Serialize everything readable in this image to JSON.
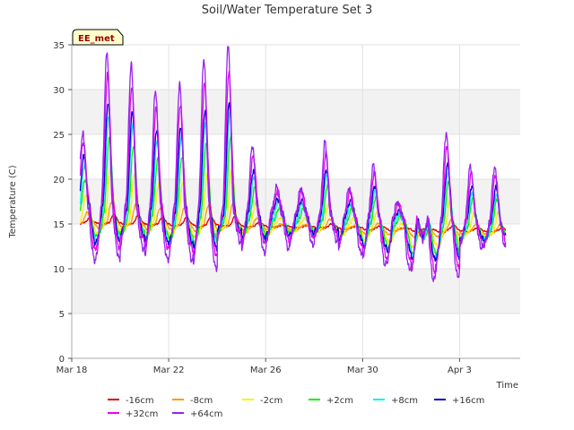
{
  "chart_data": {
    "type": "line",
    "title": "Soil/Water Temperature Set 3",
    "xlabel": "Time",
    "ylabel": "Temperature (C)",
    "badge": "EE_met",
    "xlim": [
      0,
      18.5
    ],
    "ylim": [
      0,
      35
    ],
    "yticks": [
      0,
      5,
      10,
      15,
      20,
      25,
      30,
      35
    ],
    "xticks": [
      {
        "day": 0,
        "label": "Mar 18"
      },
      {
        "day": 4,
        "label": "Mar 22"
      },
      {
        "day": 8,
        "label": "Mar 26"
      },
      {
        "day": 12,
        "label": "Mar 30"
      },
      {
        "day": 16,
        "label": "Apr 3"
      }
    ],
    "grid": true,
    "legend_position": "bottom",
    "daily_peaks_64cm": [
      22.8,
      32,
      30.6,
      27.8,
      28.5,
      31.5,
      33.2,
      22,
      17.5,
      17.5,
      22.8,
      17.8,
      20.5,
      16.5,
      12.5,
      24.5,
      21
    ],
    "daily_lows_64cm": [
      10.2,
      10.5,
      11.8,
      10.5,
      10.5,
      9.5,
      12.8,
      11.5,
      12,
      12.5,
      13,
      11.5,
      10,
      9.5,
      8,
      8.5,
      12
    ],
    "series": [
      {
        "name": "-16cm",
        "color": "#dd0000",
        "base_start": 15.2,
        "base_end": 14.2,
        "amp": 0.5,
        "phase": 0.15
      },
      {
        "name": "-8cm",
        "color": "#ff9900",
        "base_start": 15.2,
        "base_end": 14.0,
        "amp": 1.2,
        "phase": 0.05
      },
      {
        "name": "-2cm",
        "color": "#ffee00",
        "base_start": 15.5,
        "base_end": 14.0,
        "amp": 3.0,
        "phase": 0.0
      },
      {
        "name": "+2cm",
        "color": "#00ee00",
        "base_start": 16.0,
        "base_end": 14.5,
        "amp": 4.5,
        "phase": -0.05
      },
      {
        "name": "+8cm",
        "color": "#00eeee",
        "base_start": 16.5,
        "base_end": 14.5,
        "amp": 5.5,
        "phase": -0.08
      },
      {
        "name": "+16cm",
        "color": "#0000cc",
        "base_start": 17.0,
        "base_end": 14.8,
        "amp": 6.0,
        "phase": -0.1
      },
      {
        "name": "+32cm",
        "color": "#ee00ee",
        "base_start": 17.5,
        "base_end": 15.0,
        "amp": 7.5,
        "phase": -0.12
      },
      {
        "name": "+64cm",
        "color": "#9922ee",
        "base_start": 17.0,
        "base_end": 15.0,
        "amp": 9.0,
        "phase": -0.15
      }
    ]
  }
}
